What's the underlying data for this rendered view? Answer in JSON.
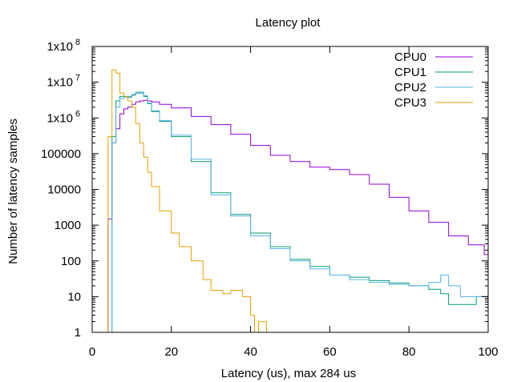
{
  "chart_data": {
    "type": "line",
    "step": true,
    "title": "Latency plot",
    "xlabel": "Latency (us), max 284 us",
    "ylabel": "Number of latency samples",
    "xlim": [
      0,
      100
    ],
    "ylim": [
      1,
      100000000
    ],
    "yscale": "log",
    "grid": false,
    "legend_position": "top-right",
    "x_ticks": [
      "0",
      "20",
      "40",
      "60",
      "80",
      "100"
    ],
    "y_ticks": [
      {
        "value": 1,
        "label": "1"
      },
      {
        "value": 10,
        "label": "10"
      },
      {
        "value": 100,
        "label": "100"
      },
      {
        "value": 1000,
        "label": "1000"
      },
      {
        "value": 10000,
        "label": "10000"
      },
      {
        "value": 100000,
        "label": "100000"
      },
      {
        "value": 1000000,
        "label": "1x10",
        "sup": "6"
      },
      {
        "value": 10000000,
        "label": "1x10",
        "sup": "7"
      },
      {
        "value": 100000000,
        "label": "1x10",
        "sup": "8"
      }
    ],
    "series": [
      {
        "name": "CPU0",
        "color": "#9400d3",
        "points": [
          [
            3,
            1
          ],
          [
            4,
            1500
          ],
          [
            5,
            200000
          ],
          [
            6,
            500000
          ],
          [
            7,
            1300000
          ],
          [
            8,
            1800000
          ],
          [
            9,
            2000000
          ],
          [
            10,
            2400000
          ],
          [
            11,
            2800000
          ],
          [
            12,
            3000000
          ],
          [
            13,
            3100000
          ],
          [
            14,
            3000000
          ],
          [
            15,
            2800000
          ],
          [
            17,
            2400000
          ],
          [
            20,
            1900000
          ],
          [
            25,
            1100000
          ],
          [
            30,
            650000
          ],
          [
            35,
            350000
          ],
          [
            40,
            170000
          ],
          [
            45,
            90000
          ],
          [
            50,
            60000
          ],
          [
            55,
            42000
          ],
          [
            60,
            36000
          ],
          [
            65,
            26000
          ],
          [
            70,
            14000
          ],
          [
            75,
            6000
          ],
          [
            80,
            2500
          ],
          [
            85,
            1200
          ],
          [
            90,
            500
          ],
          [
            95,
            280
          ],
          [
            99,
            150
          ],
          [
            100,
            130
          ]
        ]
      },
      {
        "name": "CPU1",
        "color": "#009e73",
        "points": [
          [
            3,
            1
          ],
          [
            4,
            1
          ],
          [
            5,
            300000
          ],
          [
            6,
            3000000
          ],
          [
            7,
            4000000
          ],
          [
            8,
            4000000
          ],
          [
            9,
            3800000
          ],
          [
            10,
            4500000
          ],
          [
            11,
            5200000
          ],
          [
            12,
            5000000
          ],
          [
            13,
            4000000
          ],
          [
            14,
            2500000
          ],
          [
            15,
            1500000
          ],
          [
            17,
            800000
          ],
          [
            20,
            300000
          ],
          [
            25,
            60000
          ],
          [
            30,
            8000
          ],
          [
            35,
            2000
          ],
          [
            40,
            600
          ],
          [
            45,
            250
          ],
          [
            50,
            110
          ],
          [
            55,
            70
          ],
          [
            60,
            40
          ],
          [
            65,
            35
          ],
          [
            70,
            28
          ],
          [
            75,
            24
          ],
          [
            80,
            20
          ],
          [
            85,
            16
          ],
          [
            88,
            12
          ],
          [
            90,
            6
          ],
          [
            93,
            6
          ],
          [
            97,
            10
          ],
          [
            100,
            6
          ]
        ]
      },
      {
        "name": "CPU2",
        "color": "#56b4e9",
        "points": [
          [
            3,
            1
          ],
          [
            4,
            1
          ],
          [
            5,
            200000
          ],
          [
            6,
            2000000
          ],
          [
            7,
            3500000
          ],
          [
            8,
            3800000
          ],
          [
            9,
            4000000
          ],
          [
            10,
            4300000
          ],
          [
            11,
            4800000
          ],
          [
            12,
            5300000
          ],
          [
            13,
            4200000
          ],
          [
            14,
            2600000
          ],
          [
            15,
            1600000
          ],
          [
            17,
            850000
          ],
          [
            20,
            330000
          ],
          [
            25,
            70000
          ],
          [
            30,
            7000
          ],
          [
            35,
            1800
          ],
          [
            40,
            500
          ],
          [
            45,
            220
          ],
          [
            50,
            100
          ],
          [
            55,
            60
          ],
          [
            60,
            40
          ],
          [
            65,
            30
          ],
          [
            70,
            25
          ],
          [
            75,
            22
          ],
          [
            80,
            20
          ],
          [
            85,
            25
          ],
          [
            88,
            40
          ],
          [
            90,
            20
          ],
          [
            93,
            10
          ],
          [
            97,
            10
          ],
          [
            100,
            2
          ]
        ]
      },
      {
        "name": "CPU3",
        "color": "#e69f00",
        "points": [
          [
            3,
            1
          ],
          [
            4,
            300000
          ],
          [
            5,
            22000000
          ],
          [
            6,
            18000000
          ],
          [
            7,
            5000000
          ],
          [
            8,
            4000000
          ],
          [
            9,
            3000000
          ],
          [
            10,
            2000000
          ],
          [
            11,
            700000
          ],
          [
            12,
            200000
          ],
          [
            13,
            80000
          ],
          [
            14,
            30000
          ],
          [
            15,
            12000
          ],
          [
            17,
            2500
          ],
          [
            20,
            600
          ],
          [
            22,
            250
          ],
          [
            25,
            100
          ],
          [
            28,
            30
          ],
          [
            30,
            15
          ],
          [
            33,
            12
          ],
          [
            35,
            15
          ],
          [
            38,
            10
          ],
          [
            40,
            3
          ],
          [
            41,
            1
          ],
          [
            42,
            2
          ],
          [
            44,
            1
          ],
          [
            50,
            1
          ],
          [
            60,
            1
          ],
          [
            76,
            1
          ],
          [
            100,
            1
          ]
        ]
      }
    ]
  }
}
